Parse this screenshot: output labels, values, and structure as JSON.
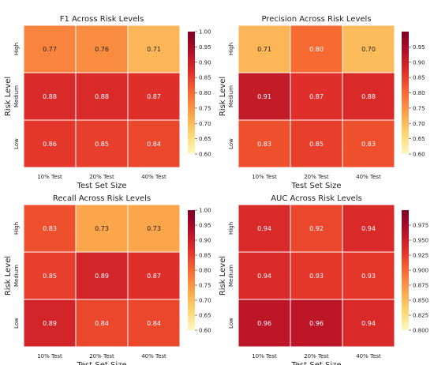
{
  "chart_data": [
    {
      "type": "heatmap",
      "title": "F1 Across Risk Levels",
      "xlabel": "Test Set Size",
      "ylabel": "Risk Level",
      "x_categories": [
        "10% Test",
        "20% Test",
        "40% Test"
      ],
      "y_categories": [
        "High",
        "Medium",
        "Low"
      ],
      "values": [
        [
          0.77,
          0.76,
          0.71
        ],
        [
          0.88,
          0.88,
          0.87
        ],
        [
          0.86,
          0.85,
          0.84
        ]
      ],
      "labels": [
        [
          "0.77",
          "0.76",
          "0.71"
        ],
        [
          "0.88",
          "0.88",
          "0.87"
        ],
        [
          "0.86",
          "0.85",
          "0.84"
        ]
      ],
      "colorbar": {
        "range": [
          0.6,
          1.0
        ],
        "ticks": [
          "1.00",
          "0.95",
          "0.90",
          "0.85",
          "0.80",
          "0.75",
          "0.70",
          "0.65",
          "0.60"
        ]
      },
      "colormap": [
        "#fff8c4",
        "#fdd56e",
        "#fca34a",
        "#f76a32",
        "#e2302a",
        "#b30f27",
        "#800026"
      ]
    },
    {
      "type": "heatmap",
      "title": "Precision Across Risk Levels",
      "xlabel": "Test Set Size",
      "ylabel": "Risk Level",
      "x_categories": [
        "10% Test",
        "20% Test",
        "40% Test"
      ],
      "y_categories": [
        "High",
        "Medium",
        "Low"
      ],
      "values": [
        [
          0.71,
          0.8,
          0.7
        ],
        [
          0.91,
          0.87,
          0.88
        ],
        [
          0.83,
          0.85,
          0.83
        ]
      ],
      "labels": [
        [
          "0.71",
          "0.80",
          "0.70"
        ],
        [
          "0.91",
          "0.87",
          "0.88"
        ],
        [
          "0.83",
          "0.85",
          "0.83"
        ]
      ],
      "colorbar": {
        "range": [
          0.6,
          1.0
        ],
        "ticks": [
          "0.95",
          "0.90",
          "0.85",
          "0.80",
          "0.75",
          "0.70",
          "0.65",
          "0.60"
        ]
      },
      "colormap": [
        "#fff8c4",
        "#fdd56e",
        "#fca34a",
        "#f76a32",
        "#e2302a",
        "#b30f27",
        "#800026"
      ]
    },
    {
      "type": "heatmap",
      "title": "Recall Across Risk Levels",
      "xlabel": "Test Set Size",
      "ylabel": "Risk Level",
      "x_categories": [
        "10% Test",
        "20% Test",
        "40% Test"
      ],
      "y_categories": [
        "High",
        "Medium",
        "Low"
      ],
      "values": [
        [
          0.83,
          0.73,
          0.73
        ],
        [
          0.85,
          0.89,
          0.87
        ],
        [
          0.89,
          0.84,
          0.84
        ]
      ],
      "labels": [
        [
          "0.83",
          "0.73",
          "0.73"
        ],
        [
          "0.85",
          "0.89",
          "0.87"
        ],
        [
          "0.89",
          "0.84",
          "0.84"
        ]
      ],
      "colorbar": {
        "range": [
          0.6,
          1.0
        ],
        "ticks": [
          "1.00",
          "0.95",
          "0.90",
          "0.85",
          "0.80",
          "0.75",
          "0.70",
          "0.65",
          "0.60"
        ]
      },
      "colormap": [
        "#fff8c4",
        "#fdd56e",
        "#fca34a",
        "#f76a32",
        "#e2302a",
        "#b30f27",
        "#800026"
      ]
    },
    {
      "type": "heatmap",
      "title": "AUC Across Risk Levels",
      "xlabel": "Test Set Size",
      "ylabel": "Risk Level",
      "x_categories": [
        "10% Test",
        "20% Test",
        "40% Test"
      ],
      "y_categories": [
        "High",
        "Medium",
        "Low"
      ],
      "values": [
        [
          0.94,
          0.92,
          0.94
        ],
        [
          0.94,
          0.93,
          0.93
        ],
        [
          0.96,
          0.96,
          0.94
        ]
      ],
      "labels": [
        [
          "0.94",
          "0.92",
          "0.94"
        ],
        [
          "0.94",
          "0.93",
          "0.93"
        ],
        [
          "0.96",
          "0.96",
          "0.94"
        ]
      ],
      "colorbar": {
        "range": [
          0.8,
          1.0
        ],
        "ticks": [
          "0.975",
          "0.950",
          "0.925",
          "0.900",
          "0.875",
          "0.850",
          "0.825",
          "0.800"
        ]
      },
      "colormap": [
        "#fff8c4",
        "#fdd56e",
        "#fca34a",
        "#f76a32",
        "#e2302a",
        "#b30f27",
        "#800026"
      ]
    }
  ]
}
